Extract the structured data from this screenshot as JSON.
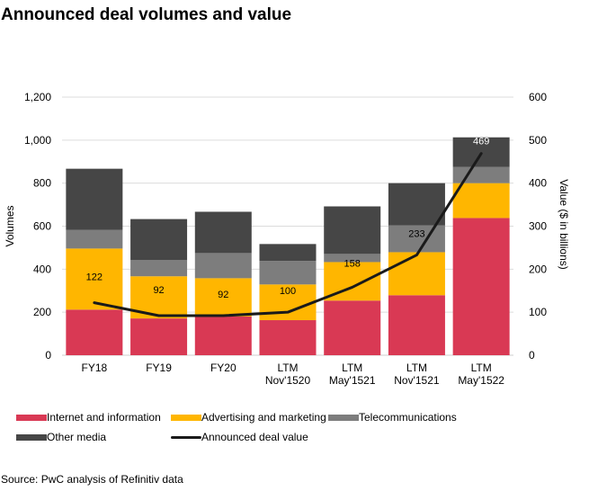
{
  "chart_data": {
    "type": "bar",
    "stacked": true,
    "title": "Announced deal volumes and value",
    "categories": [
      [
        "FY18"
      ],
      [
        "FY19"
      ],
      [
        "FY20"
      ],
      [
        "LTM",
        "Nov'1520"
      ],
      [
        "LTM",
        "May'1521"
      ],
      [
        "LTM",
        "Nov'1521"
      ],
      [
        "LTM",
        "May'1522"
      ]
    ],
    "series": [
      {
        "name": "Internet and information",
        "color": "#d93954",
        "values": [
          212,
          171,
          180,
          163,
          254,
          279,
          638
        ]
      },
      {
        "name": "Advertising and marketing",
        "color": "#ffb600",
        "values": [
          284,
          196,
          178,
          166,
          179,
          200,
          162
        ]
      },
      {
        "name": "Telecommunications",
        "color": "#7d7d7d",
        "values": [
          87,
          75,
          117,
          109,
          38,
          125,
          75
        ]
      },
      {
        "name": "Other media",
        "color": "#464646",
        "values": [
          284,
          191,
          192,
          79,
          221,
          196,
          138
        ]
      }
    ],
    "line_series": {
      "name": "Announced deal value",
      "color": "#1a1a1a",
      "axis": "right",
      "values": [
        122,
        92,
        92,
        100,
        158,
        233,
        469
      ],
      "labels": [
        "122",
        "92",
        "92",
        "100",
        "158",
        "233",
        "469"
      ]
    },
    "ylabel": "Volumes",
    "ylabel_right": "Value ($ in billions)",
    "ylim": [
      0,
      1200
    ],
    "yticks": [
      0,
      200,
      400,
      600,
      800,
      1000,
      1200
    ],
    "ytick_labels": [
      "0",
      "200",
      "400",
      "600",
      "800",
      "1,000",
      "1,200"
    ],
    "ylim_right": [
      0,
      600
    ],
    "yticks_right": [
      0,
      100,
      200,
      300,
      400,
      500,
      600
    ],
    "ytick_labels_right": [
      "0",
      "100",
      "200",
      "300",
      "400",
      "500",
      "600"
    ],
    "grid": true,
    "legend_position": "bottom"
  },
  "legend": [
    {
      "label": "Internet and information",
      "kind": "swatch",
      "color": "#d93954"
    },
    {
      "label": "Advertising and marketing",
      "kind": "swatch",
      "color": "#ffb600"
    },
    {
      "label": "Telecommunications",
      "kind": "swatch",
      "color": "#7d7d7d"
    },
    {
      "label": "Other media",
      "kind": "swatch",
      "color": "#464646"
    },
    {
      "label": "Announced deal value",
      "kind": "line",
      "color": "#1a1a1a"
    }
  ],
  "source": "Source: PwC analysis of Refinitiv data"
}
